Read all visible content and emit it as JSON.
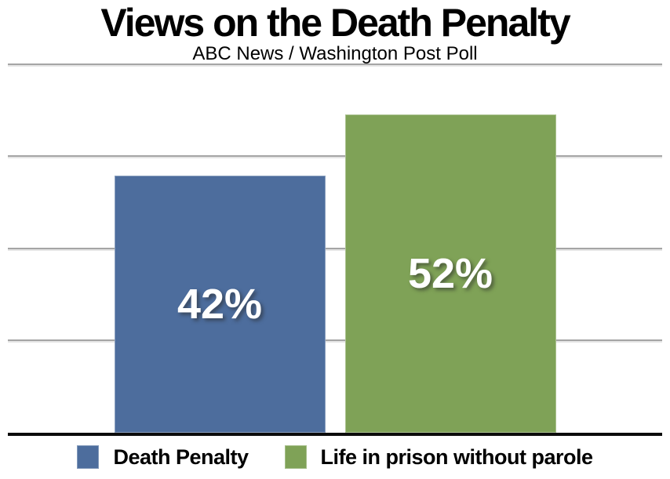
{
  "chart_data": {
    "type": "bar",
    "title": "Views on the Death Penalty",
    "subtitle": "ABC News / Washington Post Poll",
    "categories": [
      "Death Penalty",
      "Life in prison without parole"
    ],
    "values": [
      42,
      52
    ],
    "value_labels": [
      "42%",
      "52%"
    ],
    "bar_colors": [
      "#4d6d9d",
      "#7fa257"
    ],
    "xlabel": "",
    "ylabel": "",
    "ylim": [
      0,
      60
    ],
    "gridline_values": [
      15,
      30,
      45,
      60
    ],
    "grid": true,
    "axis_tick_labels_shown": false,
    "legend_position": "bottom",
    "legend": [
      {
        "label": "Death Penalty",
        "color": "#4d6d9d"
      },
      {
        "label": "Life in prison without parole",
        "color": "#7fa257"
      }
    ]
  },
  "colors": {
    "background": "#ffffff",
    "bar_blue": "#4d6d9d",
    "bar_green": "#7fa257",
    "gridline": "#a5a5a5",
    "axis_line": "#0c0c0c",
    "title_text": "#000000",
    "bar_label_text": "#ffffff"
  }
}
